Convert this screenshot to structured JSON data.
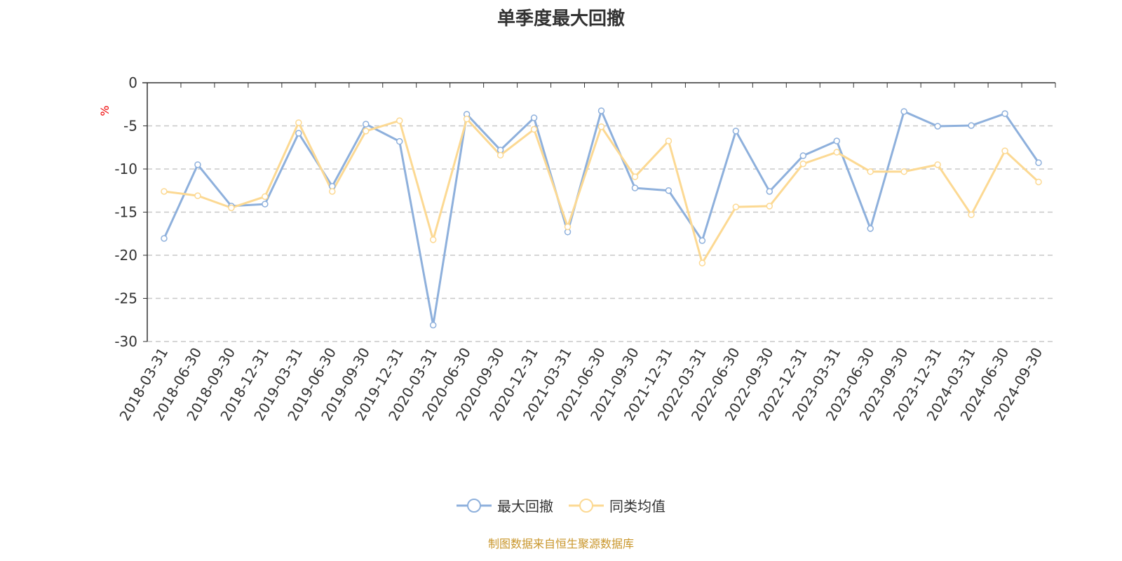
{
  "chart_data": {
    "type": "line",
    "title": "单季度最大回撤",
    "ylabel": "%",
    "xlabel": "",
    "ylim": [
      -30,
      0
    ],
    "yticks": [
      0,
      -5,
      -10,
      -15,
      -20,
      -25,
      -30
    ],
    "grid": true,
    "legend_position": "bottom",
    "categories": [
      "2018-03-31",
      "2018-06-30",
      "2018-09-30",
      "2018-12-31",
      "2019-03-31",
      "2019-06-30",
      "2019-09-30",
      "2019-12-31",
      "2020-03-31",
      "2020-06-30",
      "2020-09-30",
      "2020-12-31",
      "2021-03-31",
      "2021-06-30",
      "2021-09-30",
      "2021-12-31",
      "2022-03-31",
      "2022-06-30",
      "2022-09-30",
      "2022-12-31",
      "2023-03-31",
      "2023-06-30",
      "2023-09-30",
      "2023-12-31",
      "2024-03-31",
      "2024-06-30",
      "2024-09-30"
    ],
    "series": [
      {
        "name": "最大回撤",
        "color": "#8eb0dc",
        "values": [
          -18.05,
          -9.5,
          -14.3,
          -14.07,
          -5.85,
          -12.0,
          -4.8,
          -6.8,
          -28.1,
          -3.66,
          -7.8,
          -4.07,
          -17.3,
          -3.25,
          -12.2,
          -12.5,
          -18.3,
          -5.6,
          -12.6,
          -8.46,
          -6.75,
          -16.9,
          -3.33,
          -5.04,
          -4.96,
          -3.58,
          -9.27
        ]
      },
      {
        "name": "同类均值",
        "color": "#fcd993",
        "values": [
          -12.6,
          -13.1,
          -14.5,
          -13.2,
          -4.63,
          -12.6,
          -5.6,
          -4.4,
          -18.2,
          -4.2,
          -8.4,
          -5.4,
          -16.7,
          -5.1,
          -10.9,
          -6.75,
          -20.9,
          -14.4,
          -14.3,
          -9.4,
          -8.05,
          -10.3,
          -10.3,
          -9.5,
          -15.3,
          -7.9,
          -11.5
        ]
      }
    ]
  },
  "footer": "制图数据来自恒生聚源数据库"
}
